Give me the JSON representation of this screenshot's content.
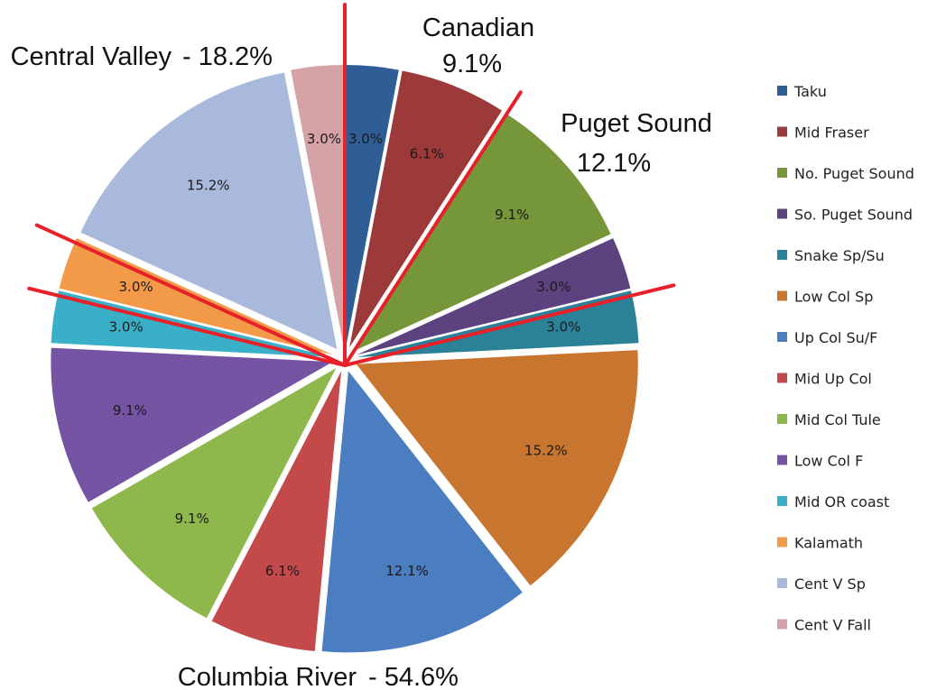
{
  "chart_data": {
    "type": "pie",
    "categories": [
      "Taku",
      "Mid Fraser",
      "No. Puget Sound",
      "So. Puget Sound",
      "Snake Sp/Su",
      "Low Col Sp",
      "Up Col Su/F",
      "Mid Up Col",
      "Mid Col Tule",
      "Low Col F",
      "Mid OR coast",
      "Kalamath",
      "Cent V Sp",
      "Cent V Fall"
    ],
    "values": [
      3.0,
      6.1,
      9.1,
      3.0,
      3.0,
      15.2,
      12.1,
      6.1,
      9.1,
      9.1,
      3.0,
      3.0,
      15.2,
      3.0
    ],
    "data_labels": [
      "3.0%",
      "6.1%",
      "9.1%",
      "3.0%",
      "3.0%",
      "15.2%",
      "12.1%",
      "6.1%",
      "9.1%",
      "9.1%",
      "3.0%",
      "3.0%",
      "15.2%",
      "3.0%"
    ],
    "colors": [
      "#2f5d95",
      "#9b3a39",
      "#76963a",
      "#5c4380",
      "#2b8197",
      "#c8752f",
      "#4b7dc1",
      "#c4494b",
      "#8fb84c",
      "#7554a3",
      "#3aafc8",
      "#f39a49",
      "#a9b9dc",
      "#d5a3a5"
    ],
    "legend": "right",
    "group_annotations": [
      {
        "name": "Canadian",
        "value": "9.1%"
      },
      {
        "name": "Puget Sound",
        "value": "12.1%"
      },
      {
        "name": "Columbia River",
        "value": "- 54.6%"
      },
      {
        "name": "Central Valley",
        "value": "- 18.2%"
      }
    ],
    "divider_color": "#e8202a"
  }
}
